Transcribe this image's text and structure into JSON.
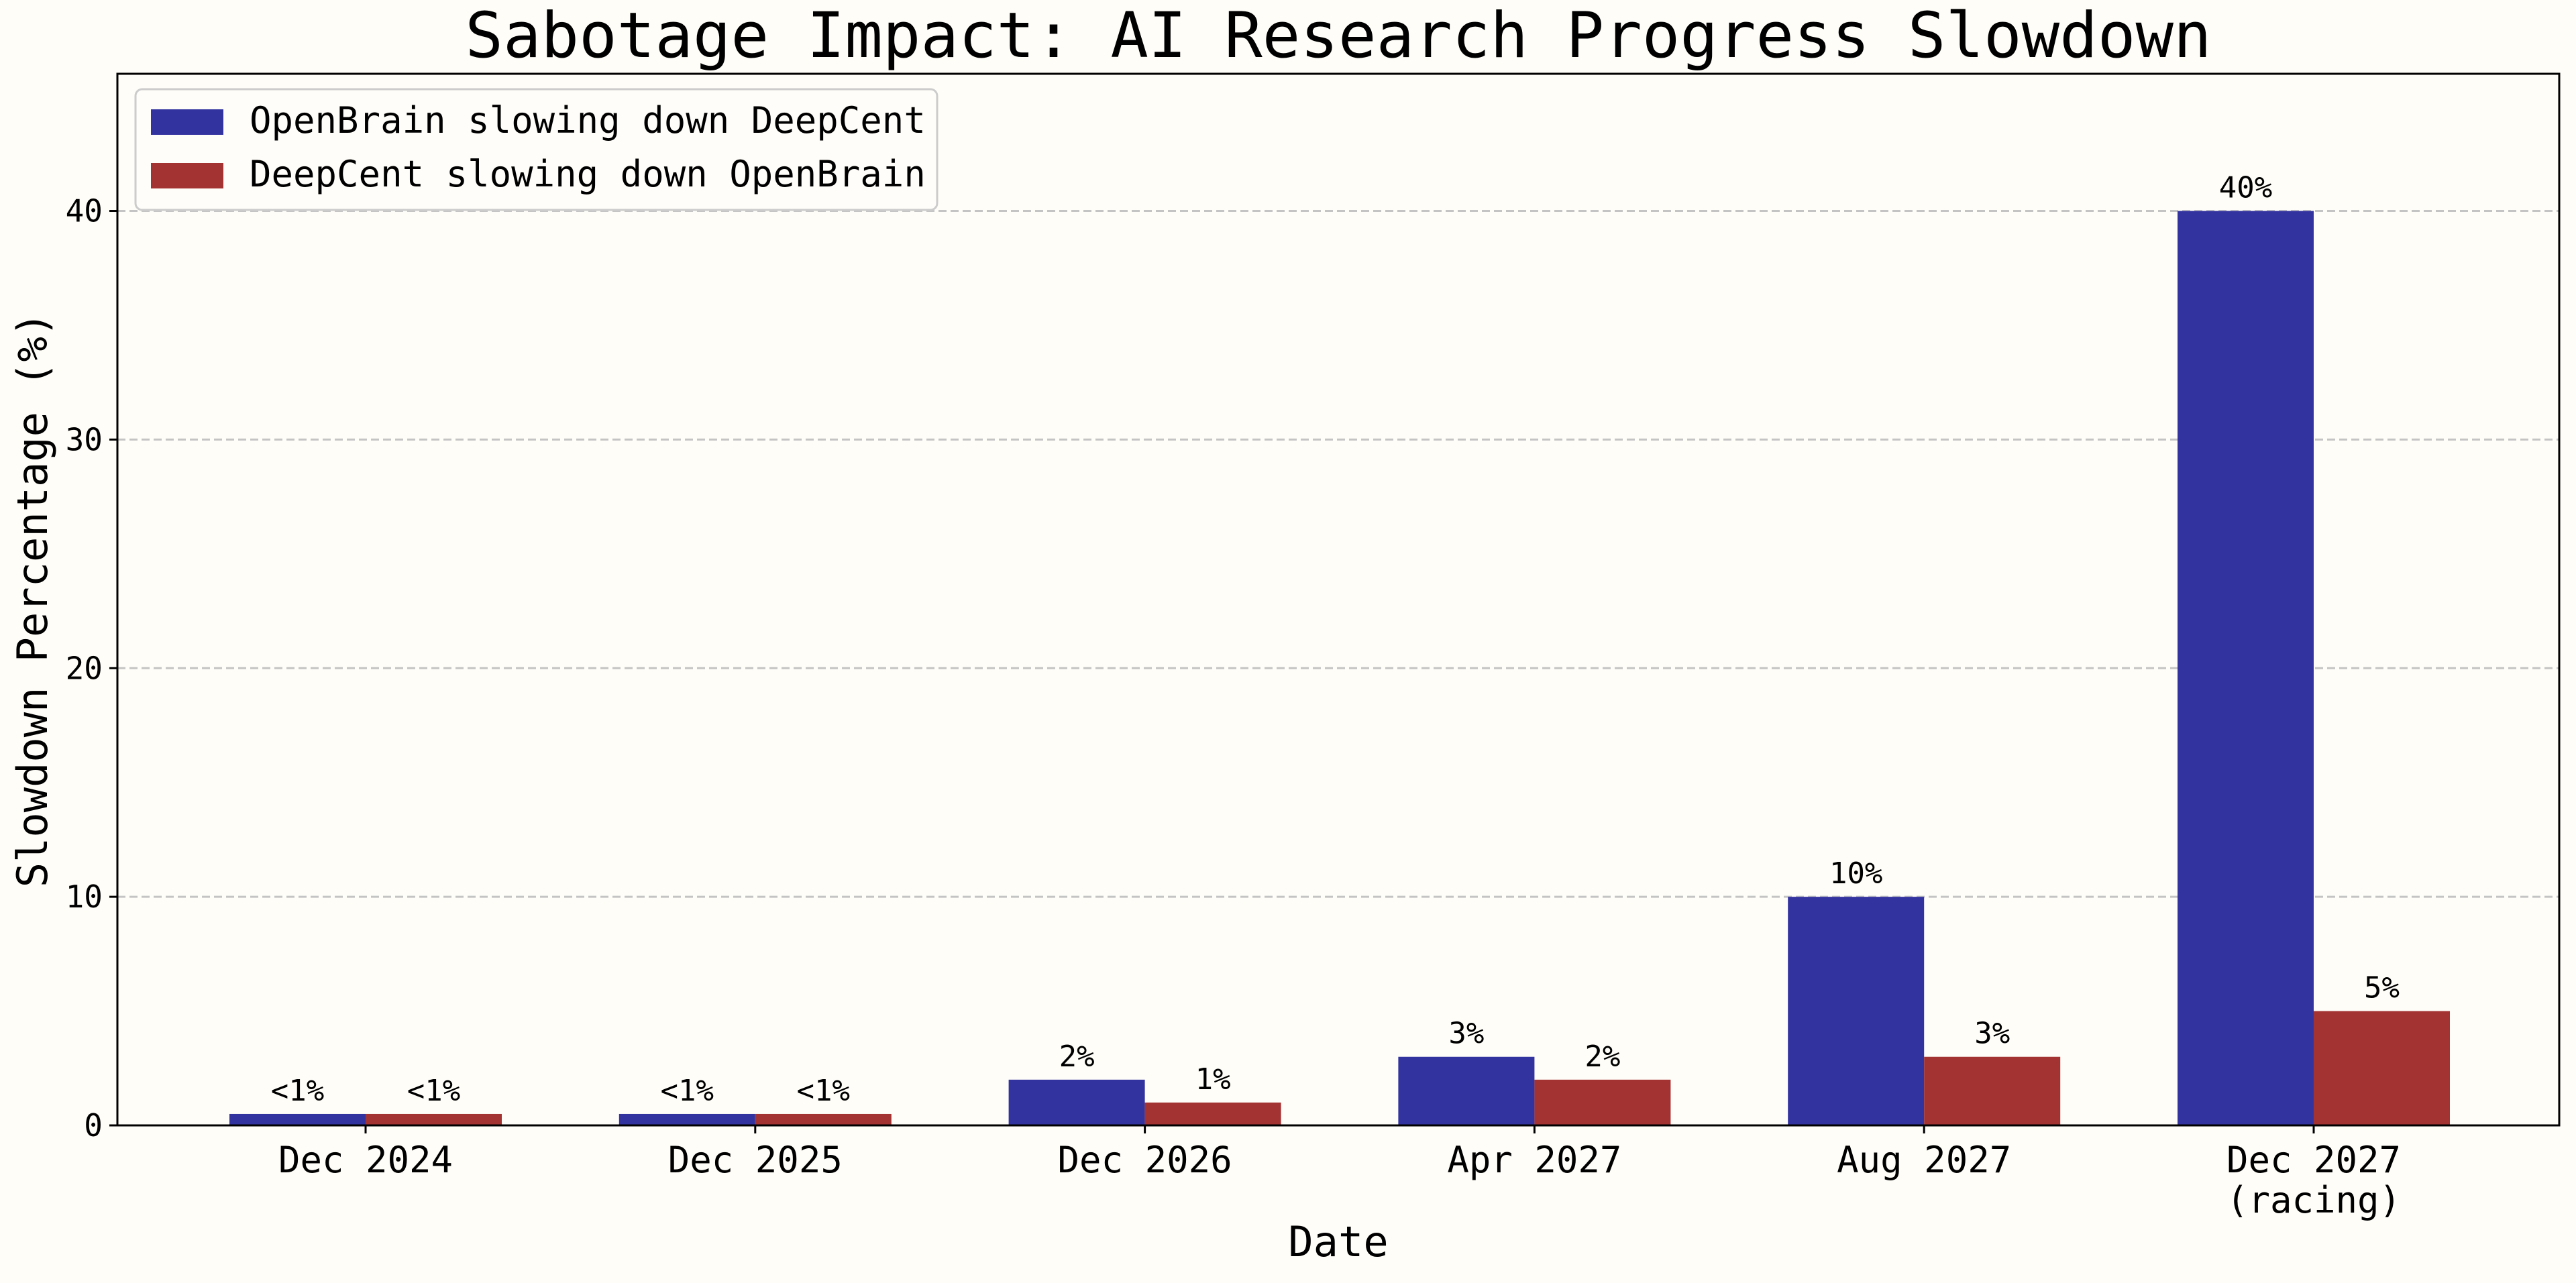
{
  "chart_data": {
    "type": "bar",
    "title": "Sabotage Impact: AI Research Progress Slowdown",
    "xlabel": "Date",
    "ylabel": "Slowdown Percentage (%)",
    "ylim": [
      0,
      46
    ],
    "yticks": [
      0,
      10,
      20,
      30,
      40
    ],
    "grid": "horizontal-dashed",
    "legend_position": "top-left",
    "categories": [
      [
        "Dec 2024"
      ],
      [
        "Dec 2025"
      ],
      [
        "Dec 2026"
      ],
      [
        "Apr 2027"
      ],
      [
        "Aug 2027"
      ],
      [
        "Dec 2027",
        "(racing)"
      ]
    ],
    "series": [
      {
        "name": "OpenBrain slowing down DeepCent",
        "color": "#3333a0",
        "values": [
          0.5,
          0.5,
          2,
          3,
          10,
          40
        ],
        "labels": [
          "<1%",
          "<1%",
          "2%",
          "3%",
          "10%",
          "40%"
        ]
      },
      {
        "name": "DeepCent slowing down OpenBrain",
        "color": "#a33333",
        "values": [
          0.5,
          0.5,
          1,
          2,
          3,
          5
        ],
        "labels": [
          "<1%",
          "<1%",
          "1%",
          "2%",
          "3%",
          "5%"
        ]
      }
    ]
  }
}
